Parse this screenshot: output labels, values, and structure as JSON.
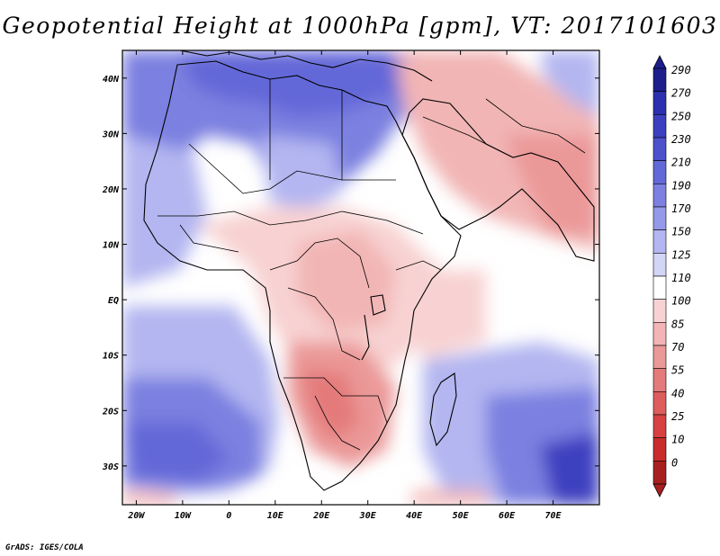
{
  "title": "Geopotential Height at 1000hPa [gpm], VT: 2017101603",
  "credit": "GrADS: IGES/COLA",
  "map": {
    "variable": "Geopotential Height",
    "level": "1000hPa",
    "units": "gpm",
    "valid_time": "2017101603",
    "lon_range": [
      -23,
      80
    ],
    "lat_range": [
      -37,
      45
    ],
    "lat_ticks": [
      {
        "value": 40,
        "label": "40N"
      },
      {
        "value": 30,
        "label": "30N"
      },
      {
        "value": 20,
        "label": "20N"
      },
      {
        "value": 10,
        "label": "10N"
      },
      {
        "value": 0,
        "label": "EQ"
      },
      {
        "value": -10,
        "label": "10S"
      },
      {
        "value": -20,
        "label": "20S"
      },
      {
        "value": -30,
        "label": "30S"
      }
    ],
    "lon_ticks": [
      {
        "value": -20,
        "label": "20W"
      },
      {
        "value": -10,
        "label": "10W"
      },
      {
        "value": 0,
        "label": "0"
      },
      {
        "value": 10,
        "label": "10E"
      },
      {
        "value": 20,
        "label": "20E"
      },
      {
        "value": 30,
        "label": "30E"
      },
      {
        "value": 40,
        "label": "40E"
      },
      {
        "value": 50,
        "label": "50E"
      },
      {
        "value": 60,
        "label": "60E"
      },
      {
        "value": 70,
        "label": "70E"
      }
    ]
  },
  "colorbar": {
    "levels": [
      "290",
      "270",
      "250",
      "230",
      "210",
      "190",
      "170",
      "150",
      "125",
      "110",
      "100",
      "85",
      "70",
      "55",
      "40",
      "25",
      "10",
      "0"
    ],
    "colors": [
      "#1c1e8c",
      "#2b30ae",
      "#3c40bf",
      "#4d51cc",
      "#6368d8",
      "#7c80e0",
      "#9499e8",
      "#b3b6f0",
      "#d3d5f7",
      "#ffffff",
      "#f8d2d2",
      "#f2b5b5",
      "#eb9898",
      "#e47a7a",
      "#de5d5d",
      "#d84141",
      "#c92c2c",
      "#a81f1f"
    ]
  },
  "field": {
    "colors": {
      "deep_blue": "#3c40bf",
      "blue": "#6368d8",
      "mid_blue": "#7c80e0",
      "light_blue": "#b3b6f0",
      "pale_blue": "#d3d5f7",
      "white": "#ffffff",
      "pale_red": "#f8d2d2",
      "light_red": "#f2b5b5",
      "red": "#eb9898",
      "dark_red": "#e47a7a"
    }
  }
}
